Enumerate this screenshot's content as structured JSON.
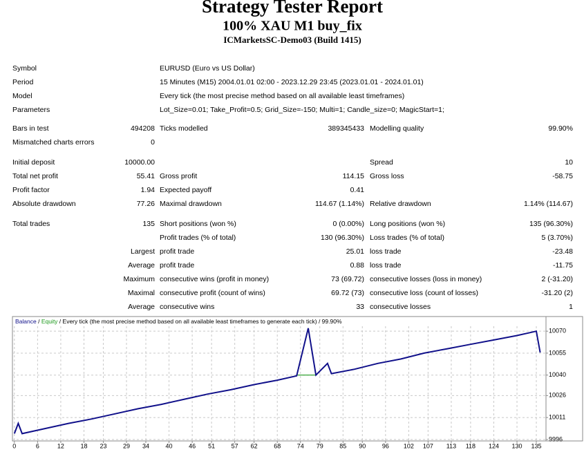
{
  "header": {
    "title": "Strategy Tester Report",
    "subtitle": "100% XAU M1 buy_fix",
    "server": "ICMarketsSC-Demo03 (Build 1415)"
  },
  "info": [
    {
      "label": "Symbol",
      "value": "EURUSD (Euro vs US Dollar)"
    },
    {
      "label": "Period",
      "value": "15 Minutes (M15) 2004.01.01 02:00 - 2023.12.29 23:45 (2023.01.01 - 2024.01.01)"
    },
    {
      "label": "Model",
      "value": "Every tick (the most precise method based on all available least timeframes)"
    },
    {
      "label": "Parameters",
      "value": "Lot_Size=0.01; Take_Profit=0.5; Grid_Size=-150; Multi=1; Candle_size=0; MagicStart=1;"
    }
  ],
  "table": {
    "rows": [
      [
        "Bars in test",
        "494208",
        "Ticks modelled",
        "389345433",
        "Modelling quality",
        "99.90%"
      ],
      [
        "Mismatched charts errors",
        "0",
        null,
        null,
        null,
        null
      ],
      [
        "Initial deposit",
        "10000.00",
        null,
        null,
        "Spread",
        "10"
      ],
      [
        "Total net profit",
        "55.41",
        "Gross profit",
        "114.15",
        "Gross loss",
        "-58.75"
      ],
      [
        "Profit factor",
        "1.94",
        "Expected payoff",
        "0.41",
        null,
        null
      ],
      [
        "Absolute drawdown",
        "77.26",
        "Maximal drawdown",
        "114.67 (1.14%)",
        "Relative drawdown",
        "1.14% (114.67)"
      ],
      [
        "Total trades",
        "135",
        "Short positions (won %)",
        "0 (0.00%)",
        "Long positions (won %)",
        "135 (96.30%)"
      ],
      [
        null,
        null,
        "Profit trades (% of total)",
        "130 (96.30%)",
        "Loss trades (% of total)",
        "5 (3.70%)"
      ],
      [
        null,
        "Largest",
        "profit trade",
        "25.01",
        "loss trade",
        "-23.48"
      ],
      [
        null,
        "Average",
        "profit trade",
        "0.88",
        "loss trade",
        "-11.75"
      ],
      [
        null,
        "Maximum",
        "consecutive wins (profit in money)",
        "73 (69.72)",
        "consecutive losses (loss in money)",
        "2 (-31.20)"
      ],
      [
        null,
        "Maximal",
        "consecutive profit (count of wins)",
        "69.72 (73)",
        "consecutive loss (count of losses)",
        "-31.20 (2)"
      ],
      [
        null,
        "Average",
        "consecutive wins",
        "33",
        "consecutive losses",
        "1"
      ]
    ]
  },
  "chart_data": {
    "type": "line",
    "subtitle": "Every tick (the most precise method based on all available least timeframes to generate each tick)",
    "quality": "99.90%",
    "series": [
      {
        "name": "Balance",
        "color": "#10108a",
        "x": [
          0,
          1,
          2,
          8,
          14,
          20,
          26,
          32,
          38,
          44,
          50,
          56,
          62,
          68,
          73,
          76,
          78,
          81,
          82,
          88,
          94,
          100,
          106,
          112,
          118,
          124,
          130,
          135,
          136
        ],
        "values": [
          10000,
          10007,
          10000,
          10003.5,
          10007,
          10010,
          10013.5,
          10017,
          10020,
          10023.5,
          10027,
          10030,
          10033.5,
          10036.5,
          10039.5,
          10072,
          10040,
          10048,
          10041,
          10044,
          10048,
          10051,
          10055,
          10058,
          10061,
          10064,
          10067,
          10070,
          10055.4
        ]
      },
      {
        "name": "Equity",
        "color": "#1c9a1c",
        "x": [
          73,
          78
        ],
        "values": [
          10040,
          10040
        ]
      }
    ],
    "xlim": [
      -0.5,
      137.5
    ],
    "xticks": [
      0,
      6,
      12,
      18,
      23,
      29,
      34,
      40,
      46,
      51,
      57,
      62,
      68,
      74,
      79,
      85,
      90,
      96,
      102,
      107,
      113,
      118,
      124,
      130,
      135
    ],
    "ylim": [
      9995,
      10080
    ],
    "yticks": [
      9996,
      10011,
      10026,
      10040,
      10055,
      10070
    ],
    "grid": true
  }
}
